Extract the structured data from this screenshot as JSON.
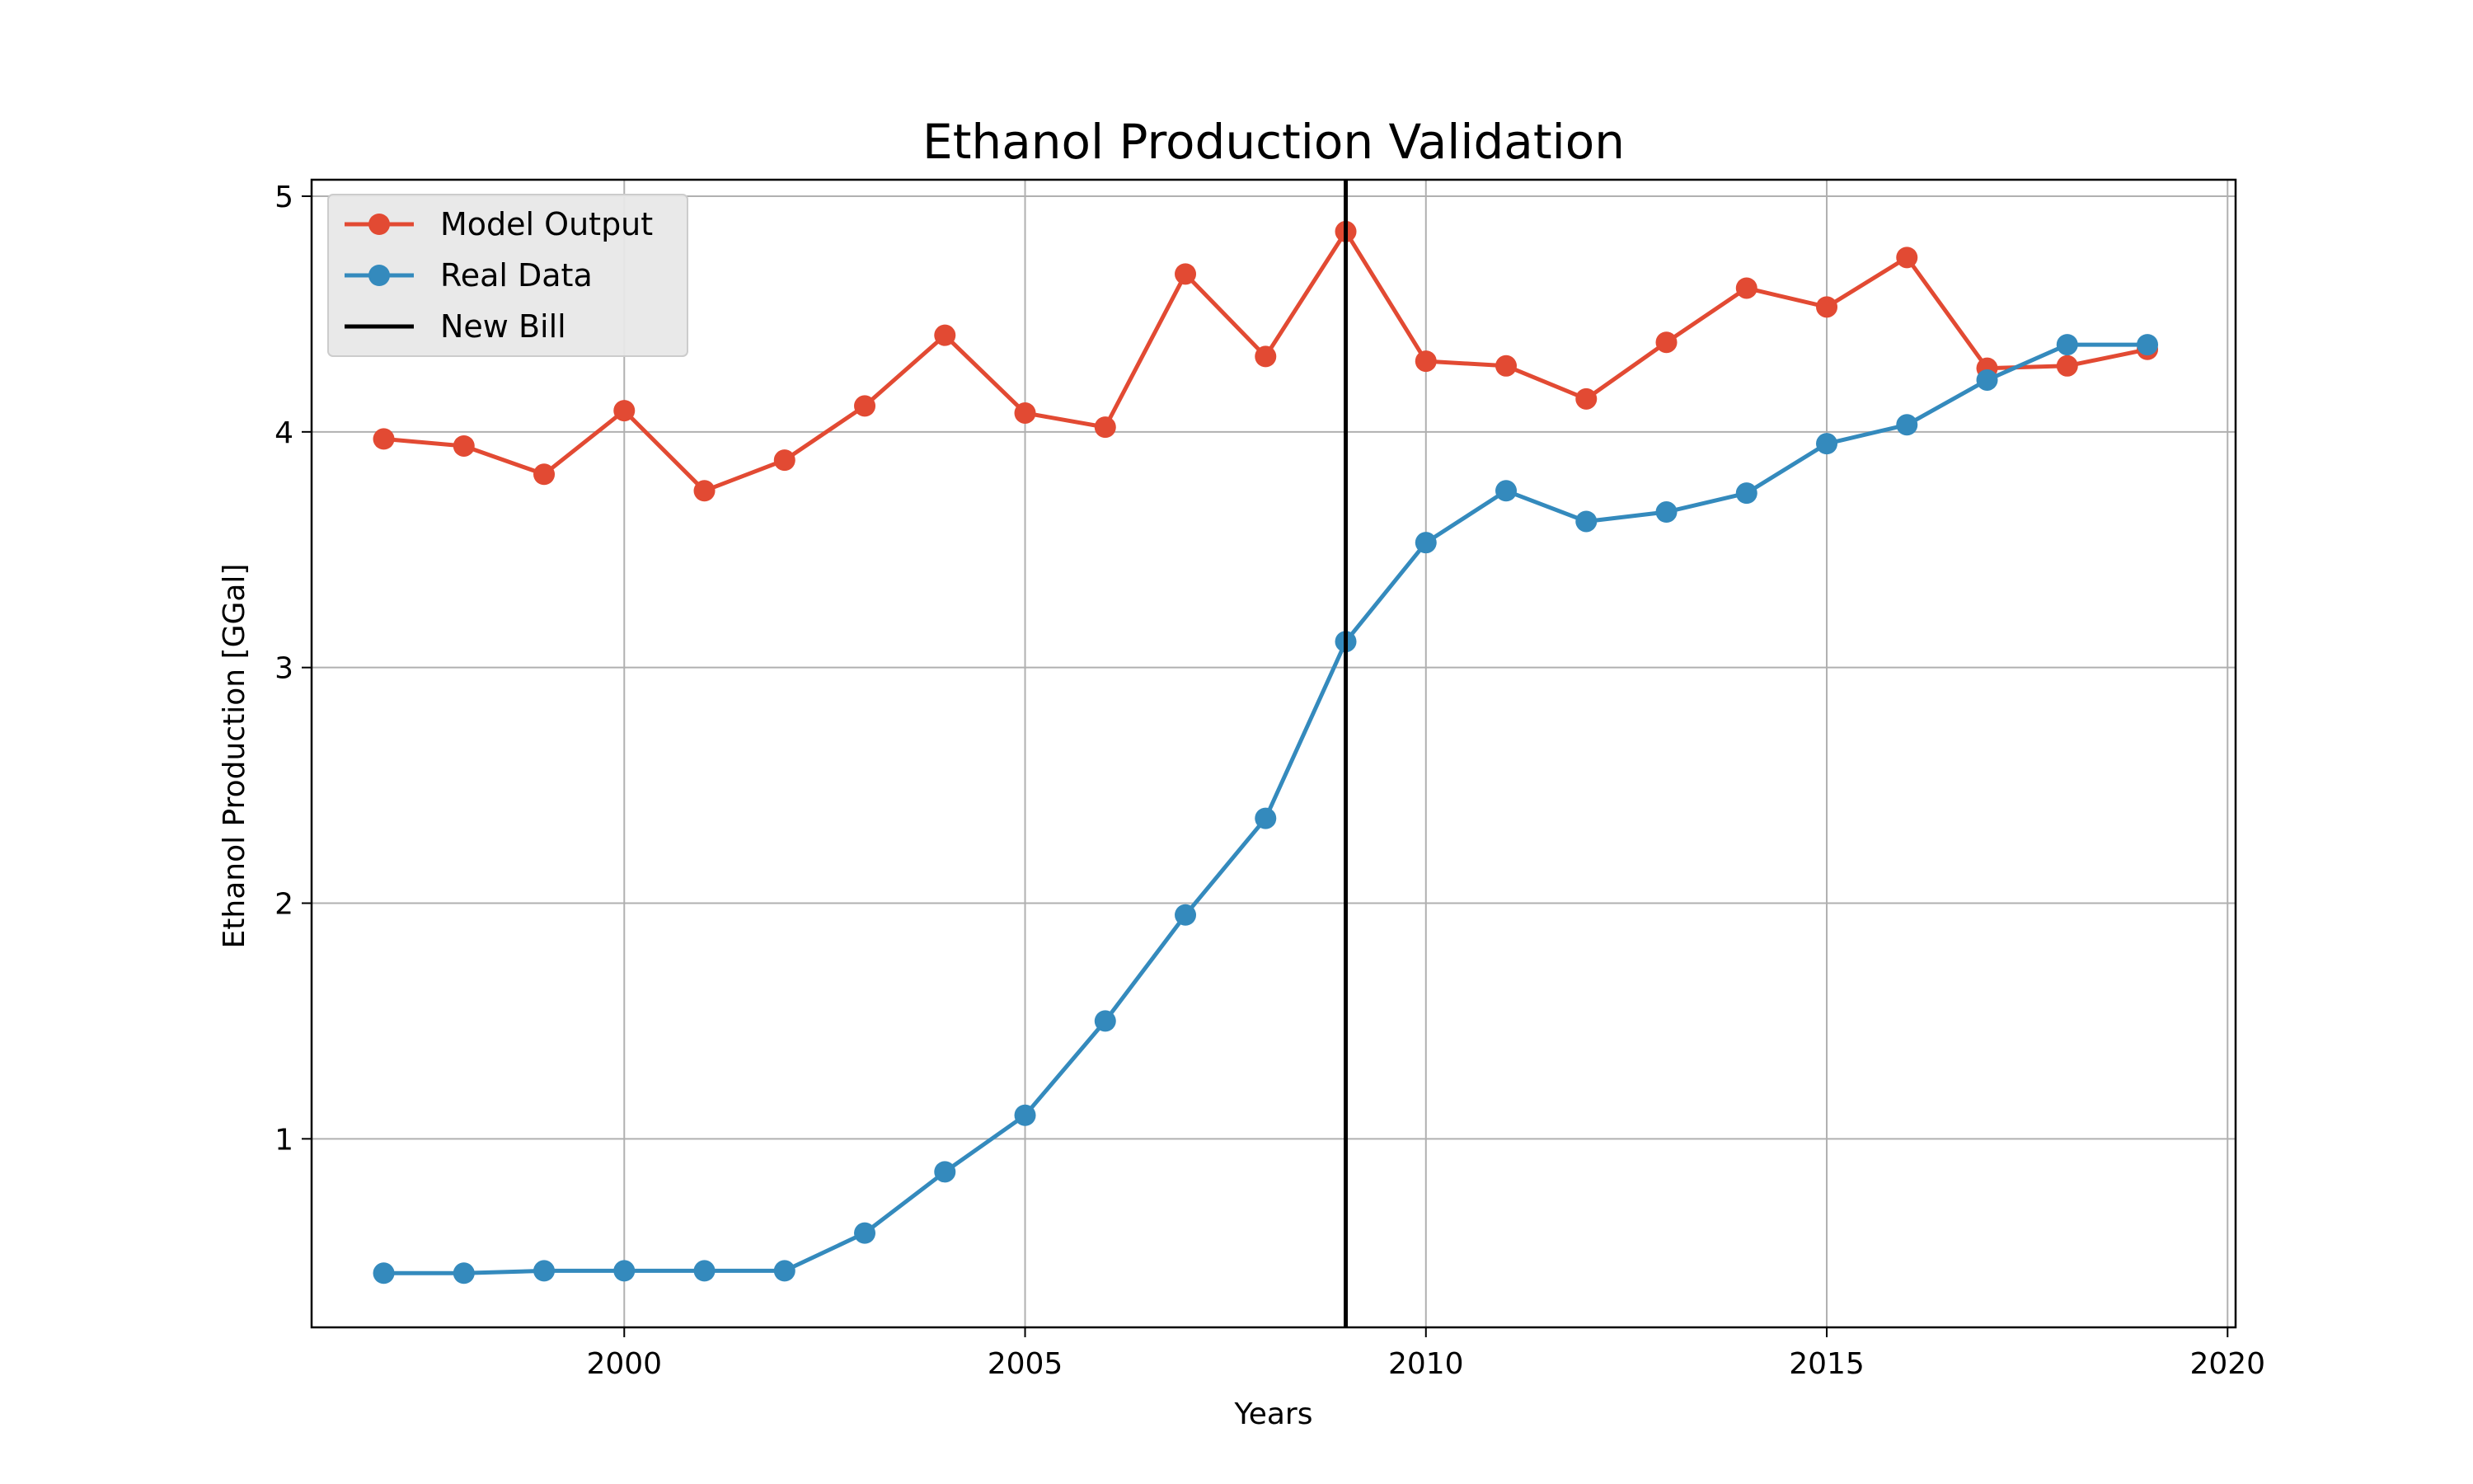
{
  "chart_data": {
    "type": "line",
    "title": "Ethanol Production Validation",
    "xlabel": "Years",
    "ylabel": "Ethanol Production [GGal]",
    "xlim": [
      1996.1,
      2020.1
    ],
    "ylim": [
      0.2,
      5.07
    ],
    "xticks": [
      2000,
      2005,
      2010,
      2015,
      2020
    ],
    "yticks": [
      1,
      2,
      3,
      4,
      5
    ],
    "grid": true,
    "legend_position": "top-left",
    "x": [
      1997,
      1998,
      1999,
      2000,
      2001,
      2002,
      2003,
      2004,
      2005,
      2006,
      2007,
      2008,
      2009,
      2010,
      2011,
      2012,
      2013,
      2014,
      2015,
      2016,
      2017,
      2018,
      2019
    ],
    "series": [
      {
        "name": "Model Output",
        "color": "#e24a33",
        "values": [
          3.97,
          3.94,
          3.82,
          4.09,
          3.75,
          3.88,
          4.11,
          4.41,
          4.08,
          4.02,
          4.67,
          4.32,
          4.85,
          4.3,
          4.28,
          4.14,
          4.38,
          4.61,
          4.53,
          4.74,
          4.27,
          4.28,
          4.35
        ]
      },
      {
        "name": "Real Data",
        "color": "#348abd",
        "values": [
          0.43,
          0.43,
          0.44,
          0.44,
          0.44,
          0.44,
          0.6,
          0.86,
          1.1,
          1.5,
          1.95,
          2.36,
          3.11,
          3.53,
          3.75,
          3.62,
          3.66,
          3.74,
          3.95,
          4.03,
          4.22,
          4.37,
          4.37
        ]
      }
    ],
    "vline": {
      "name": "New Bill",
      "x": 2009,
      "color": "#000000"
    }
  }
}
